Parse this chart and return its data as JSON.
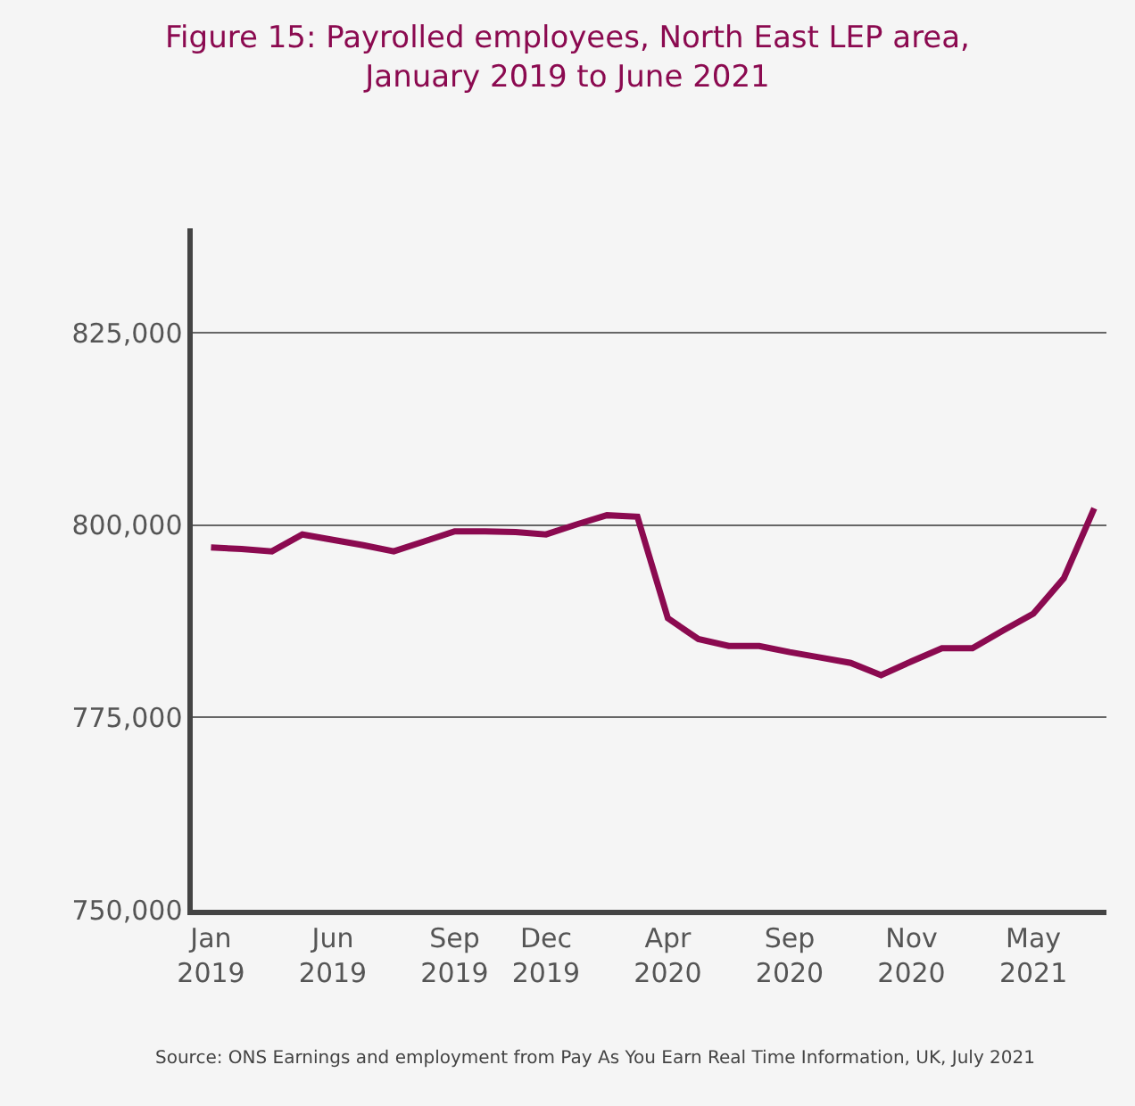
{
  "chart_data": {
    "type": "line",
    "title": "Figure 15: Payrolled employees, North East LEP area,\nJanuary 2019 to June 2021",
    "categories": [
      "Jan\n2019",
      null,
      null,
      null,
      "Jun\n2019",
      null,
      null,
      null,
      "Sep\n2019",
      null,
      null,
      "Dec\n2019",
      null,
      null,
      null,
      "Apr\n2020",
      null,
      null,
      null,
      "Sep\n2020",
      null,
      null,
      null,
      "Nov\n2020",
      null,
      null,
      null,
      "May\n2021",
      null,
      null
    ],
    "series": [
      {
        "color": "#8b0a50",
        "values": [
          797100,
          796900,
          796600,
          798800,
          798100,
          797400,
          796600,
          797900,
          799200,
          799200,
          799100,
          798800,
          800100,
          801300,
          801100,
          787900,
          785200,
          784300,
          784300,
          783500,
          782800,
          782100,
          780500,
          782300,
          784000,
          784000,
          786300,
          788500,
          793100,
          802200
        ]
      }
    ],
    "ylim": [
      750000,
      838600
    ],
    "yticks": [
      {
        "value": 750000,
        "label": "750,000"
      },
      {
        "value": 775000,
        "label": "775,000"
      },
      {
        "value": 800000,
        "label": "800,000"
      },
      {
        "value": 825000,
        "label": "825,000"
      }
    ],
    "grid": "y",
    "marker": "none",
    "line_style": "solid",
    "annotations": [
      "Source: ONS Earnings and employment from Pay As You Earn Real Time Information, UK, July 2021"
    ]
  }
}
